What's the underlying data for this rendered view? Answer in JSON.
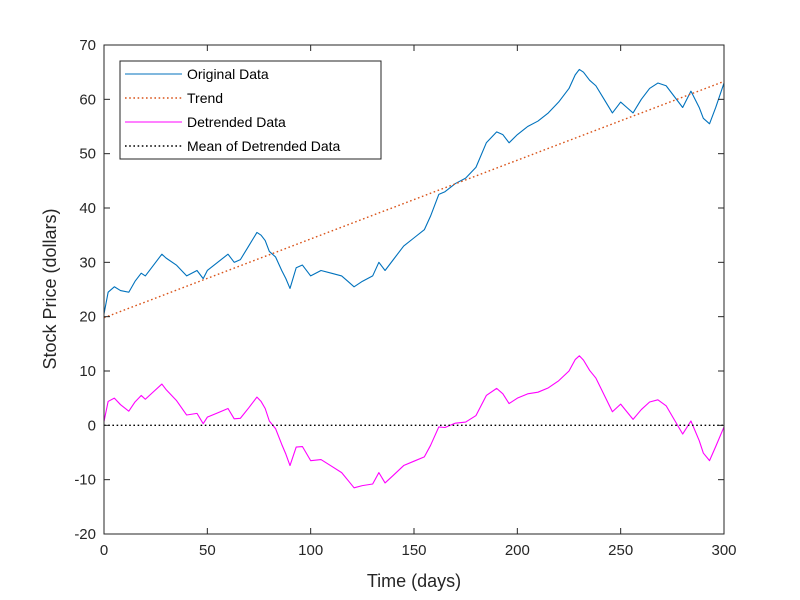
{
  "chart_data": {
    "type": "line",
    "title": "",
    "xlabel": "Time (days)",
    "ylabel": "Stock Price (dollars)",
    "xlim": [
      0,
      300
    ],
    "ylim": [
      -20,
      70
    ],
    "xticks": [
      0,
      50,
      100,
      150,
      200,
      250,
      300
    ],
    "yticks": [
      -20,
      -10,
      0,
      10,
      20,
      30,
      40,
      50,
      60,
      70
    ],
    "grid": false,
    "legend_position": "top-left",
    "series": [
      {
        "name": "Original Data",
        "color": "#0072BD",
        "style": "solid",
        "x": [
          0,
          2,
          5,
          8,
          12,
          15,
          18,
          20,
          24,
          28,
          30,
          35,
          40,
          45,
          48,
          50,
          55,
          60,
          63,
          66,
          70,
          74,
          76,
          78,
          80,
          83,
          86,
          88,
          90,
          93,
          96,
          100,
          105,
          110,
          115,
          118,
          121,
          125,
          130,
          133,
          136,
          140,
          145,
          150,
          155,
          158,
          162,
          165,
          170,
          175,
          180,
          185,
          190,
          193,
          196,
          200,
          205,
          210,
          215,
          220,
          225,
          228,
          230,
          232,
          235,
          238,
          242,
          246,
          250,
          253,
          256,
          260,
          264,
          268,
          272,
          276,
          280,
          284,
          288,
          290,
          293,
          296,
          300
        ],
        "y": [
          20.5,
          24.5,
          25.5,
          24.8,
          24.5,
          26.5,
          28,
          27.5,
          29.5,
          31.5,
          30.8,
          29.5,
          27.5,
          28.5,
          27,
          28.5,
          30,
          31.5,
          30,
          30.5,
          33,
          35.5,
          35,
          34,
          32,
          31,
          28.5,
          27,
          25.2,
          29,
          29.5,
          27.5,
          28.5,
          28,
          27.5,
          26.5,
          25.5,
          26.5,
          27.5,
          30,
          28.5,
          30.5,
          33,
          34.5,
          36,
          38.5,
          42.5,
          43,
          44.5,
          45.5,
          47.5,
          52,
          54,
          53.5,
          52,
          53.5,
          55,
          56,
          57.5,
          59.5,
          62,
          64.5,
          65.5,
          65,
          63.5,
          62.5,
          60,
          57.5,
          59.5,
          58.5,
          57.5,
          60,
          62,
          63,
          62.5,
          60.5,
          58.5,
          61.5,
          58.5,
          56.5,
          55.5,
          58.5,
          63
        ]
      },
      {
        "name": "Trend",
        "color": "#D95319",
        "style": "dotted",
        "x": [
          0,
          300
        ],
        "y": [
          19.8,
          63.3
        ]
      },
      {
        "name": "Detrended Data",
        "color": "#FF00FF",
        "style": "solid",
        "x": [
          0,
          2,
          5,
          8,
          12,
          15,
          18,
          20,
          24,
          28,
          30,
          35,
          40,
          45,
          48,
          50,
          55,
          60,
          63,
          66,
          70,
          74,
          76,
          78,
          80,
          83,
          86,
          88,
          90,
          93,
          96,
          100,
          105,
          110,
          115,
          118,
          121,
          125,
          130,
          133,
          136,
          140,
          145,
          150,
          155,
          158,
          162,
          165,
          170,
          175,
          180,
          185,
          190,
          193,
          196,
          200,
          205,
          210,
          215,
          220,
          225,
          228,
          230,
          232,
          235,
          238,
          242,
          246,
          250,
          253,
          256,
          260,
          264,
          268,
          272,
          276,
          280,
          284,
          288,
          290,
          293,
          296,
          300
        ],
        "y": [
          0.7,
          4.4,
          5,
          3.8,
          2.6,
          4.3,
          5.5,
          4.8,
          6.2,
          7.6,
          6.6,
          4.6,
          1.9,
          2.2,
          0.3,
          1.5,
          2.3,
          3.1,
          1.2,
          1.3,
          3.2,
          5.2,
          4.4,
          3.1,
          0.8,
          -0.6,
          -3.5,
          -5.3,
          -7.4,
          -4,
          -3.9,
          -6.5,
          -6.3,
          -7.5,
          -8.7,
          -10.1,
          -11.5,
          -11.1,
          -10.8,
          -8.7,
          -10.6,
          -9.2,
          -7.4,
          -6.6,
          -5.8,
          -3.7,
          -0.3,
          -0.4,
          0.4,
          0.6,
          1.8,
          5.5,
          6.8,
          5.8,
          4,
          5,
          5.8,
          6.1,
          6.9,
          8.2,
          10,
          12.1,
          12.8,
          12,
          10.1,
          8.7,
          5.6,
          2.5,
          3.9,
          2.5,
          1.1,
          2.9,
          4.3,
          4.7,
          3.6,
          1,
          -1.6,
          0.8,
          -2.8,
          -5.1,
          -6.5,
          -3.9,
          -0.3
        ]
      },
      {
        "name": "Mean of Detrended Data",
        "color": "#000000",
        "style": "dotted",
        "x": [
          0,
          300
        ],
        "y": [
          0,
          0
        ]
      }
    ]
  }
}
